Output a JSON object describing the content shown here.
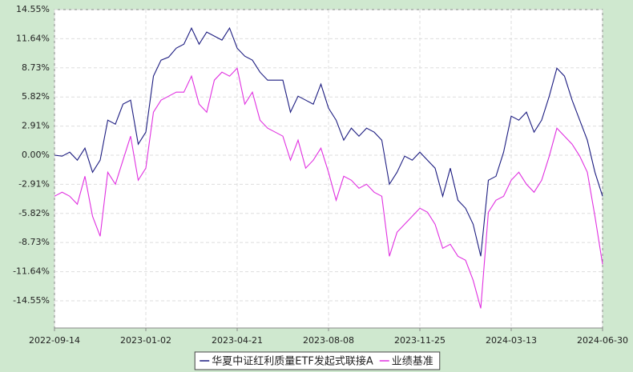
{
  "chart_data": {
    "type": "line",
    "categories": [
      "2022-09-14",
      null,
      null,
      null,
      null,
      null,
      null,
      null,
      null,
      null,
      null,
      null,
      "2023-01-02",
      null,
      null,
      null,
      null,
      null,
      null,
      null,
      null,
      null,
      null,
      null,
      "2023-04-21",
      null,
      null,
      null,
      null,
      null,
      null,
      null,
      null,
      null,
      null,
      null,
      "2023-08-08",
      null,
      null,
      null,
      null,
      null,
      null,
      null,
      null,
      null,
      null,
      null,
      "2023-11-25",
      null,
      null,
      null,
      null,
      null,
      null,
      null,
      null,
      null,
      null,
      null,
      "2024-03-13",
      null,
      null,
      null,
      null,
      null,
      null,
      null,
      null,
      null,
      null,
      null,
      "2024-06-30"
    ],
    "series": [
      {
        "name": "华夏中证红利质量ETF发起式联接A",
        "color": "#1c1c80",
        "values": [
          0,
          -0.1,
          0.3,
          -0.5,
          0.7,
          -1.7,
          -0.5,
          3.5,
          3.1,
          5.1,
          5.5,
          1.1,
          2.3,
          7.9,
          9.5,
          9.8,
          10.7,
          11.1,
          12.7,
          11.1,
          12.3,
          11.9,
          11.5,
          12.7,
          10.7,
          9.9,
          9.5,
          8.3,
          7.5,
          7.5,
          7.5,
          4.3,
          5.9,
          5.5,
          5.1,
          7.1,
          4.7,
          3.5,
          1.5,
          2.7,
          1.9,
          2.7,
          2.3,
          1.5,
          -2.9,
          -1.7,
          -0.1,
          -0.5,
          0.3,
          -0.5,
          -1.3,
          -4.1,
          -1.3,
          -4.5,
          -5.3,
          -6.9,
          -10.1,
          -2.5,
          -2.1,
          0.3,
          3.9,
          3.5,
          4.3,
          2.3,
          3.5,
          5.9,
          8.7,
          7.9,
          5.5,
          3.5,
          1.5,
          -1.7,
          -4.1
        ]
      },
      {
        "name": "业绩基准",
        "color": "#e030e0",
        "values": [
          -4.1,
          -3.7,
          -4.1,
          -4.9,
          -2.1,
          -6.1,
          -8.1,
          -1.7,
          -2.9,
          -0.5,
          1.9,
          -2.5,
          -1.3,
          4.3,
          5.5,
          5.9,
          6.3,
          6.3,
          7.9,
          5.1,
          4.3,
          7.5,
          8.3,
          7.9,
          8.7,
          5.1,
          6.3,
          3.5,
          2.7,
          2.3,
          1.9,
          -0.5,
          1.5,
          -1.3,
          -0.5,
          0.7,
          -1.7,
          -4.5,
          -2.1,
          -2.5,
          -3.3,
          -2.9,
          -3.7,
          -4.1,
          -10.1,
          -7.7,
          -6.9,
          -6.1,
          -5.3,
          -5.7,
          -6.9,
          -9.3,
          -8.9,
          -10.1,
          -10.5,
          -12.5,
          -15.3,
          -5.7,
          -4.5,
          -4.1,
          -2.5,
          -1.7,
          -2.9,
          -3.7,
          -2.5,
          -0.1,
          2.7,
          1.9,
          1.1,
          -0.1,
          -1.7,
          -6.1,
          -10.9
        ]
      }
    ],
    "ylim": [
      -17.27,
      14.55
    ],
    "yticks": [
      {
        "value": 14.55,
        "label": "14.55%"
      },
      {
        "value": 11.64,
        "label": "11.64%"
      },
      {
        "value": 8.73,
        "label": "8.73%"
      },
      {
        "value": 5.82,
        "label": "5.82%"
      },
      {
        "value": 2.91,
        "label": "2.91%"
      },
      {
        "value": 0,
        "label": "0.00%"
      },
      {
        "value": -2.91,
        "label": "-2.91%"
      },
      {
        "value": -5.82,
        "label": "-5.82%"
      },
      {
        "value": -8.73,
        "label": "-8.73%"
      },
      {
        "value": -11.64,
        "label": "-11.64%"
      },
      {
        "value": -14.55,
        "label": "-14.55%"
      }
    ],
    "grid": true,
    "legend": "bottom"
  }
}
